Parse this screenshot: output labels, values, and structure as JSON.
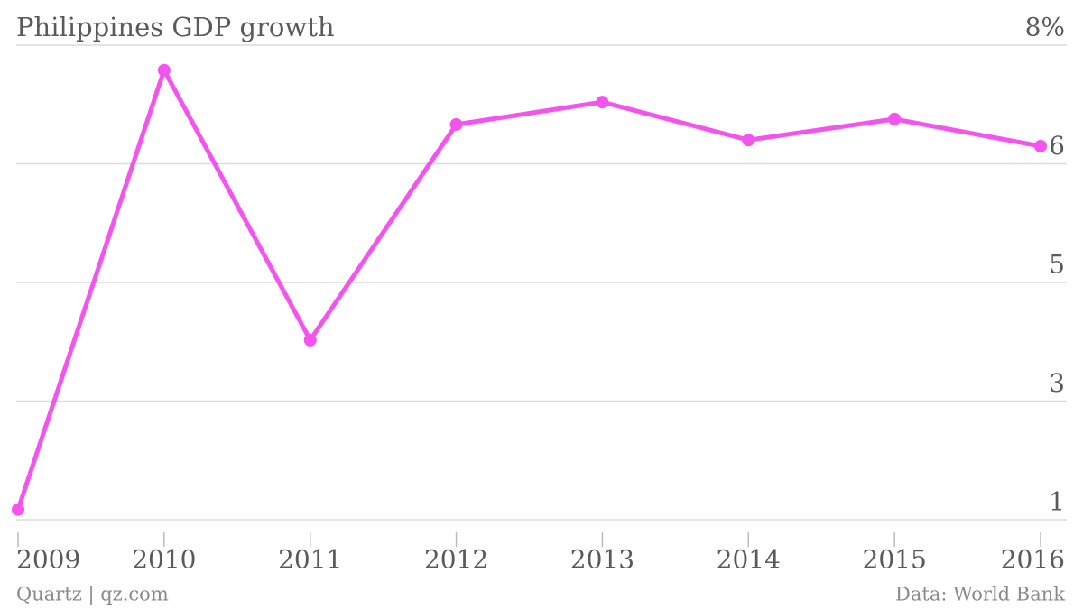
{
  "chart_data": {
    "type": "line",
    "title": "Philippines GDP growth",
    "source": "Quartz | qz.com",
    "credit": "Data: World Bank",
    "categories": [
      "2009",
      "2010",
      "2011",
      "2012",
      "2013",
      "2014",
      "2015",
      "2016"
    ],
    "series": [
      {
        "name": "GDP growth",
        "color": "#f553ee",
        "values": [
          1.15,
          7.63,
          3.65,
          6.83,
          7.16,
          6.6,
          6.91,
          6.51
        ]
      }
    ],
    "ylim": [
      1,
      8
    ],
    "yticks": [
      1,
      {
        "value": 2.75,
        "label": "3"
      },
      {
        "value": 4.5,
        "label": "5"
      },
      {
        "value": 6.25,
        "label": "6"
      },
      {
        "value": 8,
        "label": "8%"
      }
    ],
    "grid": true
  }
}
